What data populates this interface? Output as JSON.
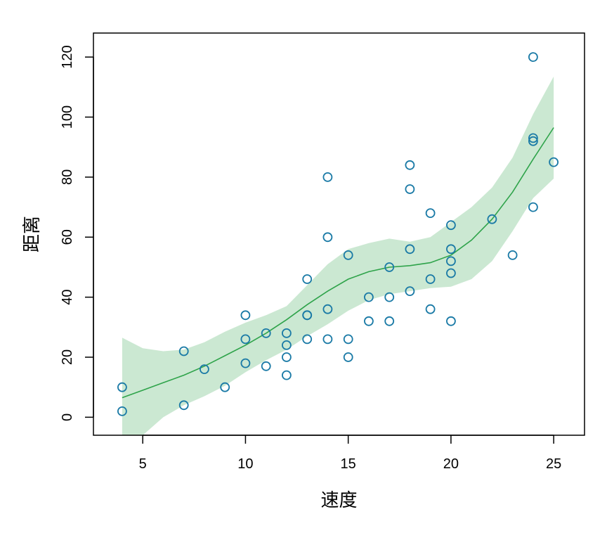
{
  "chart_data": {
    "type": "scatter",
    "title": "",
    "xlabel": "速度",
    "ylabel": "距离",
    "xlim": [
      2.6,
      26.5
    ],
    "ylim": [
      -6,
      128
    ],
    "xticks": [
      5,
      10,
      15,
      20,
      25
    ],
    "yticks": [
      0,
      20,
      40,
      60,
      80,
      100,
      120
    ],
    "colors": {
      "points": "#1a7aa6",
      "line": "#2ea34a",
      "band": "#cbe8d2"
    },
    "series": [
      {
        "type": "scatter",
        "x": [
          4,
          4,
          7,
          7,
          8,
          9,
          10,
          10,
          10,
          11,
          11,
          12,
          12,
          12,
          12,
          13,
          13,
          13,
          13,
          14,
          14,
          14,
          14,
          15,
          15,
          15,
          16,
          16,
          17,
          17,
          17,
          18,
          18,
          18,
          18,
          19,
          19,
          19,
          20,
          20,
          20,
          20,
          20,
          22,
          23,
          24,
          24,
          24,
          24,
          25
        ],
        "y": [
          2,
          10,
          4,
          22,
          16,
          10,
          18,
          26,
          34,
          17,
          28,
          14,
          20,
          24,
          28,
          26,
          34,
          34,
          46,
          26,
          36,
          60,
          80,
          20,
          26,
          54,
          32,
          40,
          32,
          40,
          50,
          42,
          56,
          76,
          84,
          36,
          46,
          68,
          32,
          48,
          52,
          56,
          64,
          66,
          54,
          70,
          92,
          93,
          120,
          85
        ]
      },
      {
        "type": "line",
        "x": [
          4,
          5,
          6,
          7,
          8,
          9,
          10,
          11,
          12,
          13,
          14,
          15,
          16,
          17,
          18,
          19,
          20,
          21,
          22,
          23,
          24,
          25
        ],
        "y": [
          6.5,
          9,
          11.5,
          14,
          17,
          20.5,
          24,
          28,
          32.5,
          37.5,
          42,
          46,
          48.5,
          50,
          50.5,
          51.5,
          54,
          59,
          66,
          75,
          86,
          96.5
        ]
      },
      {
        "type": "area",
        "x": [
          4,
          5,
          6,
          7,
          8,
          9,
          10,
          11,
          12,
          13,
          14,
          15,
          16,
          17,
          18,
          19,
          20,
          21,
          22,
          23,
          24,
          25
        ],
        "lower": [
          -6,
          -6,
          0,
          4,
          7,
          10.5,
          15,
          19,
          22.5,
          27,
          31,
          35.5,
          39,
          41,
          42,
          43,
          43.5,
          46,
          52,
          62,
          73,
          79.5
        ],
        "upper": [
          26.5,
          23,
          22,
          22.5,
          25,
          28.5,
          31.5,
          34,
          37,
          44,
          51,
          56,
          58,
          59.5,
          58.5,
          60,
          65,
          70,
          76.5,
          86.5,
          101,
          113.5
        ]
      }
    ]
  }
}
